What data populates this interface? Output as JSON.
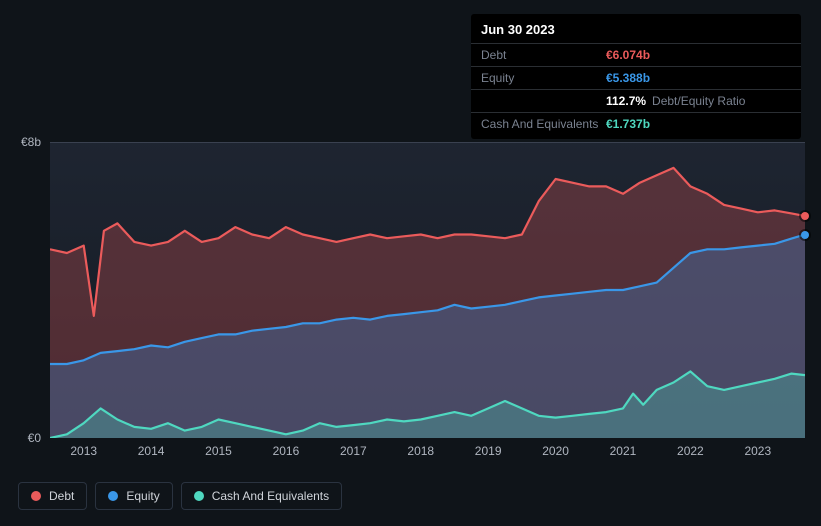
{
  "tooltip": {
    "date": "Jun 30 2023",
    "rows": [
      {
        "label": "Debt",
        "value": "€6.074b",
        "color": "#eb5b5b"
      },
      {
        "label": "Equity",
        "value": "€5.388b",
        "color": "#3a97e8"
      },
      {
        "label": "",
        "value": "112.7%",
        "extra": "Debt/Equity Ratio",
        "color": "#ffffff"
      },
      {
        "label": "Cash And Equivalents",
        "value": "€1.737b",
        "color": "#4fd8c0"
      }
    ]
  },
  "chart": {
    "type": "area",
    "background_color": "#0f1419",
    "plot_bg_gradient": [
      "rgba(40,48,65,0.6)",
      "rgba(30,36,50,0.4)"
    ],
    "ylim": [
      0,
      8
    ],
    "yticks": [
      {
        "v": 0,
        "label": "€0"
      },
      {
        "v": 8,
        "label": "€8b"
      }
    ],
    "x_years": [
      "2013",
      "2014",
      "2015",
      "2016",
      "2017",
      "2018",
      "2019",
      "2020",
      "2021",
      "2022",
      "2023"
    ],
    "x_range": [
      2012.5,
      2023.7
    ],
    "grid_color": "#3a4150",
    "line_width": 2.2,
    "area_opacity": 0.28,
    "series": [
      {
        "name": "Debt",
        "color": "#eb5b5b",
        "fill": "#eb5b5b",
        "data": [
          [
            2012.5,
            5.1
          ],
          [
            2012.75,
            5.0
          ],
          [
            2013.0,
            5.2
          ],
          [
            2013.15,
            3.3
          ],
          [
            2013.3,
            5.6
          ],
          [
            2013.5,
            5.8
          ],
          [
            2013.75,
            5.3
          ],
          [
            2014.0,
            5.2
          ],
          [
            2014.25,
            5.3
          ],
          [
            2014.5,
            5.6
          ],
          [
            2014.75,
            5.3
          ],
          [
            2015.0,
            5.4
          ],
          [
            2015.25,
            5.7
          ],
          [
            2015.5,
            5.5
          ],
          [
            2015.75,
            5.4
          ],
          [
            2016.0,
            5.7
          ],
          [
            2016.25,
            5.5
          ],
          [
            2016.5,
            5.4
          ],
          [
            2016.75,
            5.3
          ],
          [
            2017.0,
            5.4
          ],
          [
            2017.25,
            5.5
          ],
          [
            2017.5,
            5.4
          ],
          [
            2017.75,
            5.45
          ],
          [
            2018.0,
            5.5
          ],
          [
            2018.25,
            5.4
          ],
          [
            2018.5,
            5.5
          ],
          [
            2018.75,
            5.5
          ],
          [
            2019.0,
            5.45
          ],
          [
            2019.25,
            5.4
          ],
          [
            2019.5,
            5.5
          ],
          [
            2019.75,
            6.4
          ],
          [
            2020.0,
            7.0
          ],
          [
            2020.25,
            6.9
          ],
          [
            2020.5,
            6.8
          ],
          [
            2020.75,
            6.8
          ],
          [
            2021.0,
            6.6
          ],
          [
            2021.25,
            6.9
          ],
          [
            2021.5,
            7.1
          ],
          [
            2021.75,
            7.3
          ],
          [
            2022.0,
            6.8
          ],
          [
            2022.25,
            6.6
          ],
          [
            2022.5,
            6.3
          ],
          [
            2022.75,
            6.2
          ],
          [
            2023.0,
            6.1
          ],
          [
            2023.25,
            6.15
          ],
          [
            2023.5,
            6.07
          ],
          [
            2023.7,
            6.0
          ]
        ]
      },
      {
        "name": "Equity",
        "color": "#3a97e8",
        "fill": "#3a97e8",
        "data": [
          [
            2012.5,
            2.0
          ],
          [
            2012.75,
            2.0
          ],
          [
            2013.0,
            2.1
          ],
          [
            2013.25,
            2.3
          ],
          [
            2013.5,
            2.35
          ],
          [
            2013.75,
            2.4
          ],
          [
            2014.0,
            2.5
          ],
          [
            2014.25,
            2.45
          ],
          [
            2014.5,
            2.6
          ],
          [
            2014.75,
            2.7
          ],
          [
            2015.0,
            2.8
          ],
          [
            2015.25,
            2.8
          ],
          [
            2015.5,
            2.9
          ],
          [
            2015.75,
            2.95
          ],
          [
            2016.0,
            3.0
          ],
          [
            2016.25,
            3.1
          ],
          [
            2016.5,
            3.1
          ],
          [
            2016.75,
            3.2
          ],
          [
            2017.0,
            3.25
          ],
          [
            2017.25,
            3.2
          ],
          [
            2017.5,
            3.3
          ],
          [
            2017.75,
            3.35
          ],
          [
            2018.0,
            3.4
          ],
          [
            2018.25,
            3.45
          ],
          [
            2018.5,
            3.6
          ],
          [
            2018.75,
            3.5
          ],
          [
            2019.0,
            3.55
          ],
          [
            2019.25,
            3.6
          ],
          [
            2019.5,
            3.7
          ],
          [
            2019.75,
            3.8
          ],
          [
            2020.0,
            3.85
          ],
          [
            2020.25,
            3.9
          ],
          [
            2020.5,
            3.95
          ],
          [
            2020.75,
            4.0
          ],
          [
            2021.0,
            4.0
          ],
          [
            2021.25,
            4.1
          ],
          [
            2021.5,
            4.2
          ],
          [
            2021.75,
            4.6
          ],
          [
            2022.0,
            5.0
          ],
          [
            2022.25,
            5.1
          ],
          [
            2022.5,
            5.1
          ],
          [
            2022.75,
            5.15
          ],
          [
            2023.0,
            5.2
          ],
          [
            2023.25,
            5.25
          ],
          [
            2023.5,
            5.39
          ],
          [
            2023.7,
            5.5
          ]
        ]
      },
      {
        "name": "Cash And Equivalents",
        "color": "#4fd8c0",
        "fill": "#4fd8c0",
        "data": [
          [
            2012.5,
            0.0
          ],
          [
            2012.75,
            0.1
          ],
          [
            2013.0,
            0.4
          ],
          [
            2013.25,
            0.8
          ],
          [
            2013.5,
            0.5
          ],
          [
            2013.75,
            0.3
          ],
          [
            2014.0,
            0.25
          ],
          [
            2014.25,
            0.4
          ],
          [
            2014.5,
            0.2
          ],
          [
            2014.75,
            0.3
          ],
          [
            2015.0,
            0.5
          ],
          [
            2015.25,
            0.4
          ],
          [
            2015.5,
            0.3
          ],
          [
            2015.75,
            0.2
          ],
          [
            2016.0,
            0.1
          ],
          [
            2016.25,
            0.2
          ],
          [
            2016.5,
            0.4
          ],
          [
            2016.75,
            0.3
          ],
          [
            2017.0,
            0.35
          ],
          [
            2017.25,
            0.4
          ],
          [
            2017.5,
            0.5
          ],
          [
            2017.75,
            0.45
          ],
          [
            2018.0,
            0.5
          ],
          [
            2018.25,
            0.6
          ],
          [
            2018.5,
            0.7
          ],
          [
            2018.75,
            0.6
          ],
          [
            2019.0,
            0.8
          ],
          [
            2019.25,
            1.0
          ],
          [
            2019.5,
            0.8
          ],
          [
            2019.75,
            0.6
          ],
          [
            2020.0,
            0.55
          ],
          [
            2020.25,
            0.6
          ],
          [
            2020.5,
            0.65
          ],
          [
            2020.75,
            0.7
          ],
          [
            2021.0,
            0.8
          ],
          [
            2021.15,
            1.2
          ],
          [
            2021.3,
            0.9
          ],
          [
            2021.5,
            1.3
          ],
          [
            2021.75,
            1.5
          ],
          [
            2022.0,
            1.8
          ],
          [
            2022.25,
            1.4
          ],
          [
            2022.5,
            1.3
          ],
          [
            2022.75,
            1.4
          ],
          [
            2023.0,
            1.5
          ],
          [
            2023.25,
            1.6
          ],
          [
            2023.5,
            1.74
          ],
          [
            2023.7,
            1.7
          ]
        ]
      }
    ],
    "markers": [
      {
        "x": 2023.7,
        "y": 6.0,
        "color": "#eb5b5b"
      },
      {
        "x": 2023.7,
        "y": 5.5,
        "color": "#3a97e8"
      }
    ]
  },
  "legend": [
    {
      "label": "Debt",
      "color": "#eb5b5b"
    },
    {
      "label": "Equity",
      "color": "#3a97e8"
    },
    {
      "label": "Cash And Equivalents",
      "color": "#4fd8c0"
    }
  ]
}
